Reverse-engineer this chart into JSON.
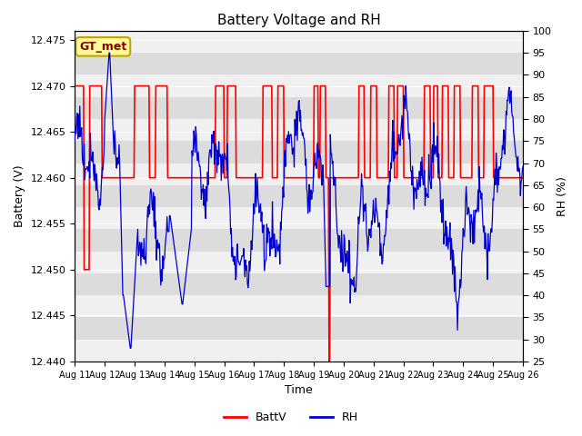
{
  "title": "Battery Voltage and RH",
  "xlabel": "Time",
  "ylabel_left": "Battery (V)",
  "ylabel_right": "RH (%)",
  "annotation": "GT_met",
  "ylim_left": [
    12.44,
    12.476
  ],
  "ylim_right": [
    25,
    100
  ],
  "yticks_left": [
    12.44,
    12.445,
    12.45,
    12.455,
    12.46,
    12.465,
    12.47,
    12.475
  ],
  "yticks_right": [
    25,
    30,
    35,
    40,
    45,
    50,
    55,
    60,
    65,
    70,
    75,
    80,
    85,
    90,
    95,
    100
  ],
  "xtick_labels": [
    "Aug 11",
    "Aug 12",
    "Aug 13",
    "Aug 14",
    "Aug 15",
    "Aug 16",
    "Aug 17",
    "Aug 18",
    "Aug 19",
    "Aug 20",
    "Aug 21",
    "Aug 22",
    "Aug 23",
    "Aug 24",
    "Aug 25",
    "Aug 26"
  ],
  "color_battv": "#ff0000",
  "color_rh": "#0000cc",
  "background_color": "#ffffff",
  "plot_bg_light": "#f0f0f0",
  "plot_bg_dark": "#dcdcdc",
  "legend_labels": [
    "BattV",
    "RH"
  ],
  "grid_color": "#ffffff",
  "annotation_bg": "#ffff99",
  "annotation_border": "#c8a000",
  "annotation_text_color": "#8b0000",
  "n_days": 15,
  "band_step": 5
}
